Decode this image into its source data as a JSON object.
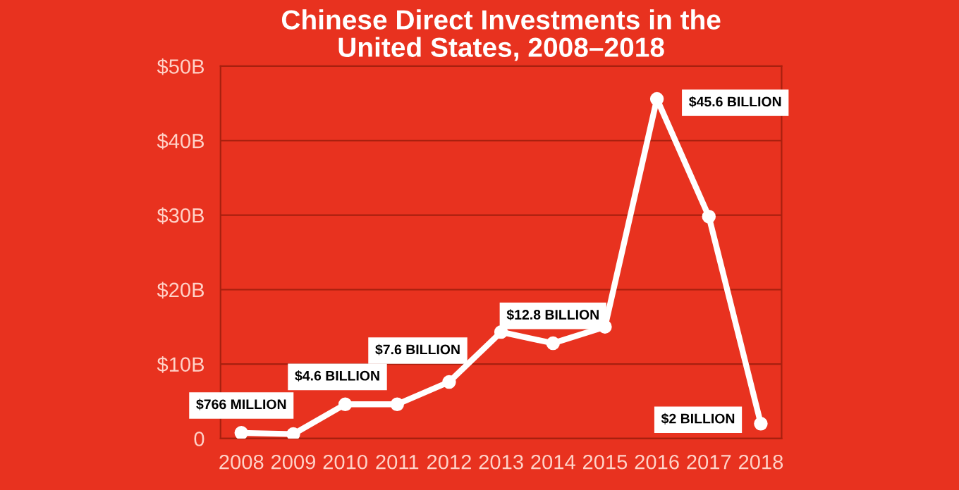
{
  "chart_data": {
    "type": "line",
    "title": "Chinese Direct Investments in the\nUnited States, 2008–2018",
    "categories": [
      "2008",
      "2009",
      "2010",
      "2011",
      "2012",
      "2013",
      "2014",
      "2015",
      "2016",
      "2017",
      "2018"
    ],
    "series": [
      {
        "color": "#ffffff",
        "values": [
          0.766,
          0.6,
          4.6,
          4.6,
          7.6,
          14.3,
          12.8,
          15.0,
          45.6,
          29.8,
          2
        ]
      }
    ],
    "ylim": [
      0,
      50
    ],
    "yticks": [
      {
        "value": 0,
        "label": "0"
      },
      {
        "value": 10,
        "label": "$10B"
      },
      {
        "value": 20,
        "label": "$20B"
      },
      {
        "value": 30,
        "label": "$30B"
      },
      {
        "value": 40,
        "label": "$40B"
      },
      {
        "value": 50,
        "label": "$50B"
      }
    ],
    "grid": "y",
    "marker": "circle",
    "line_style": "solid",
    "annotations": [
      {
        "text": "$766 MILLION",
        "x": "2008",
        "y": 0.766
      },
      {
        "text": "$4.6 BILLION",
        "x": "2010",
        "y": 4.6
      },
      {
        "text": "$7.6 BILLION",
        "x": "2012",
        "y": 7.6
      },
      {
        "text": "$12.8 BILLION",
        "x": "2014",
        "y": 12.8
      },
      {
        "text": "$45.6 BILLION",
        "x": "2016",
        "y": 45.6
      },
      {
        "text": "$2 BILLION",
        "x": "2018",
        "y": 2
      }
    ]
  }
}
